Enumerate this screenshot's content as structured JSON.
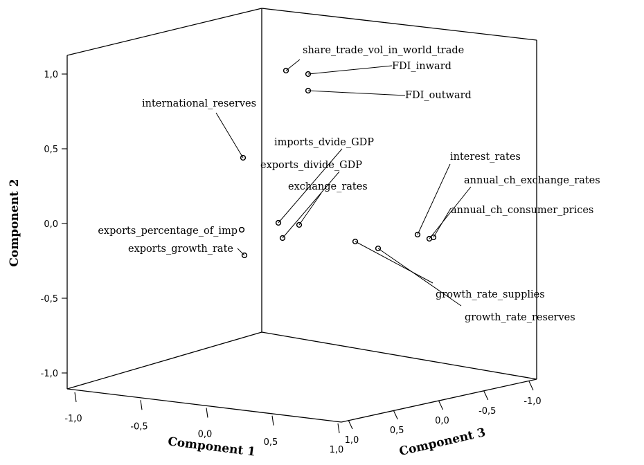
{
  "chart_data": {
    "type": "scatter3d",
    "title": "",
    "axes": {
      "x": {
        "label": "Component 1",
        "range": [
          -1.0,
          1.0
        ],
        "ticks": [
          "-1,0",
          "-0,5",
          "0,0",
          "0,5",
          "1,0"
        ]
      },
      "y": {
        "label": "Component 2",
        "range": [
          -1.0,
          1.0
        ],
        "ticks": [
          "-1,0",
          "-0,5",
          "0,0",
          "0,5",
          "1,0"
        ]
      },
      "z": {
        "label": "Component 3",
        "range": [
          -1.0,
          1.0
        ],
        "ticks": [
          "1,0",
          "0,5",
          "0,0",
          "-0,5",
          "-1,0"
        ]
      }
    },
    "points": [
      {
        "label": "share_trade_vol_in_world_trade",
        "y": 1.01
      },
      {
        "label": "FDI_inward",
        "y": 0.99
      },
      {
        "label": "FDI_outward",
        "y": 0.88
      },
      {
        "label": "international_reserves",
        "y": 0.43
      },
      {
        "label": "imports_dvide_GDP",
        "y": -0.03
      },
      {
        "label": "exports_divide_GDP",
        "y": 0.0
      },
      {
        "label": "exchange_rates",
        "y": -0.11
      },
      {
        "label": "interest_rates",
        "y": -0.08
      },
      {
        "label": "annual_ch_exchange_rates",
        "y": -0.11
      },
      {
        "label": "annual_ch_consumer_prices",
        "y": -0.1
      },
      {
        "label": "exports_percentage_of_imp",
        "y": -0.05
      },
      {
        "label": "exports_growth_rate",
        "y": -0.22
      },
      {
        "label": "growth_rate_supplies",
        "y": -0.12
      },
      {
        "label": "growth_rate_reserves",
        "y": -0.17
      }
    ]
  }
}
